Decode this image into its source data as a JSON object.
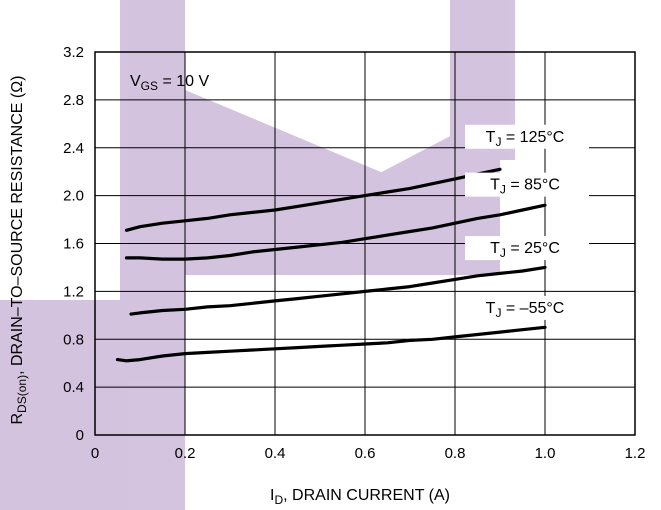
{
  "chart_data": {
    "type": "line",
    "xlabel": {
      "main": "I",
      "sub": "D",
      "rest": ", DRAIN CURRENT (A)"
    },
    "ylabel": {
      "main": "R",
      "sub": "DS(on)",
      "rest": ", DRAIN–TO–SOURCE RESISTANCE (Ω)"
    },
    "condition": {
      "main": "V",
      "sub": "GS",
      "rest": " = 10 V"
    },
    "xlim": [
      0,
      1.2
    ],
    "ylim": [
      0,
      3.2
    ],
    "x_ticks": [
      "0",
      "0.2",
      "0.4",
      "0.6",
      "0.8",
      "1.0",
      "1.2"
    ],
    "y_ticks": [
      "0",
      "0.4",
      "0.8",
      "1.2",
      "1.6",
      "2.0",
      "2.4",
      "2.8",
      "3.2"
    ],
    "grid": true,
    "series": [
      {
        "name": {
          "main": "T",
          "sub": "J",
          "rest": " = 125°C"
        },
        "x": [
          0.07,
          0.1,
          0.15,
          0.2,
          0.25,
          0.3,
          0.35,
          0.4,
          0.45,
          0.5,
          0.55,
          0.6,
          0.65,
          0.7,
          0.75,
          0.8,
          0.85,
          0.9
        ],
        "y": [
          1.71,
          1.74,
          1.77,
          1.79,
          1.81,
          1.84,
          1.86,
          1.88,
          1.91,
          1.94,
          1.97,
          2.0,
          2.03,
          2.06,
          2.1,
          2.14,
          2.18,
          2.22
        ]
      },
      {
        "name": {
          "main": "T",
          "sub": "J",
          "rest": " = 85°C"
        },
        "x": [
          0.07,
          0.1,
          0.15,
          0.2,
          0.25,
          0.3,
          0.35,
          0.4,
          0.45,
          0.5,
          0.55,
          0.6,
          0.65,
          0.7,
          0.75,
          0.8,
          0.85,
          0.9,
          0.95,
          1.0
        ],
        "y": [
          1.48,
          1.48,
          1.47,
          1.47,
          1.48,
          1.5,
          1.53,
          1.55,
          1.57,
          1.59,
          1.61,
          1.64,
          1.67,
          1.7,
          1.73,
          1.77,
          1.81,
          1.84,
          1.88,
          1.92
        ]
      },
      {
        "name": {
          "main": "T",
          "sub": "J",
          "rest": " = 25°C"
        },
        "x": [
          0.08,
          0.1,
          0.15,
          0.2,
          0.25,
          0.3,
          0.35,
          0.4,
          0.45,
          0.5,
          0.55,
          0.6,
          0.65,
          0.7,
          0.75,
          0.8,
          0.85,
          0.9,
          0.95,
          1.0
        ],
        "y": [
          1.01,
          1.02,
          1.04,
          1.05,
          1.07,
          1.08,
          1.1,
          1.12,
          1.14,
          1.16,
          1.18,
          1.2,
          1.22,
          1.24,
          1.27,
          1.3,
          1.33,
          1.35,
          1.37,
          1.4
        ]
      },
      {
        "name": {
          "main": "T",
          "sub": "J",
          "rest": " = –55°C"
        },
        "x": [
          0.05,
          0.07,
          0.1,
          0.15,
          0.2,
          0.25,
          0.3,
          0.35,
          0.4,
          0.45,
          0.5,
          0.55,
          0.6,
          0.65,
          0.7,
          0.75,
          0.8,
          0.85,
          0.9,
          0.95,
          1.0
        ],
        "y": [
          0.63,
          0.62,
          0.63,
          0.66,
          0.68,
          0.69,
          0.7,
          0.71,
          0.72,
          0.73,
          0.74,
          0.75,
          0.76,
          0.77,
          0.79,
          0.8,
          0.82,
          0.84,
          0.86,
          0.88,
          0.9
        ]
      }
    ],
    "colors": {
      "line": "#000000",
      "grid": "#000000",
      "watermark": "#b89cc9"
    }
  }
}
